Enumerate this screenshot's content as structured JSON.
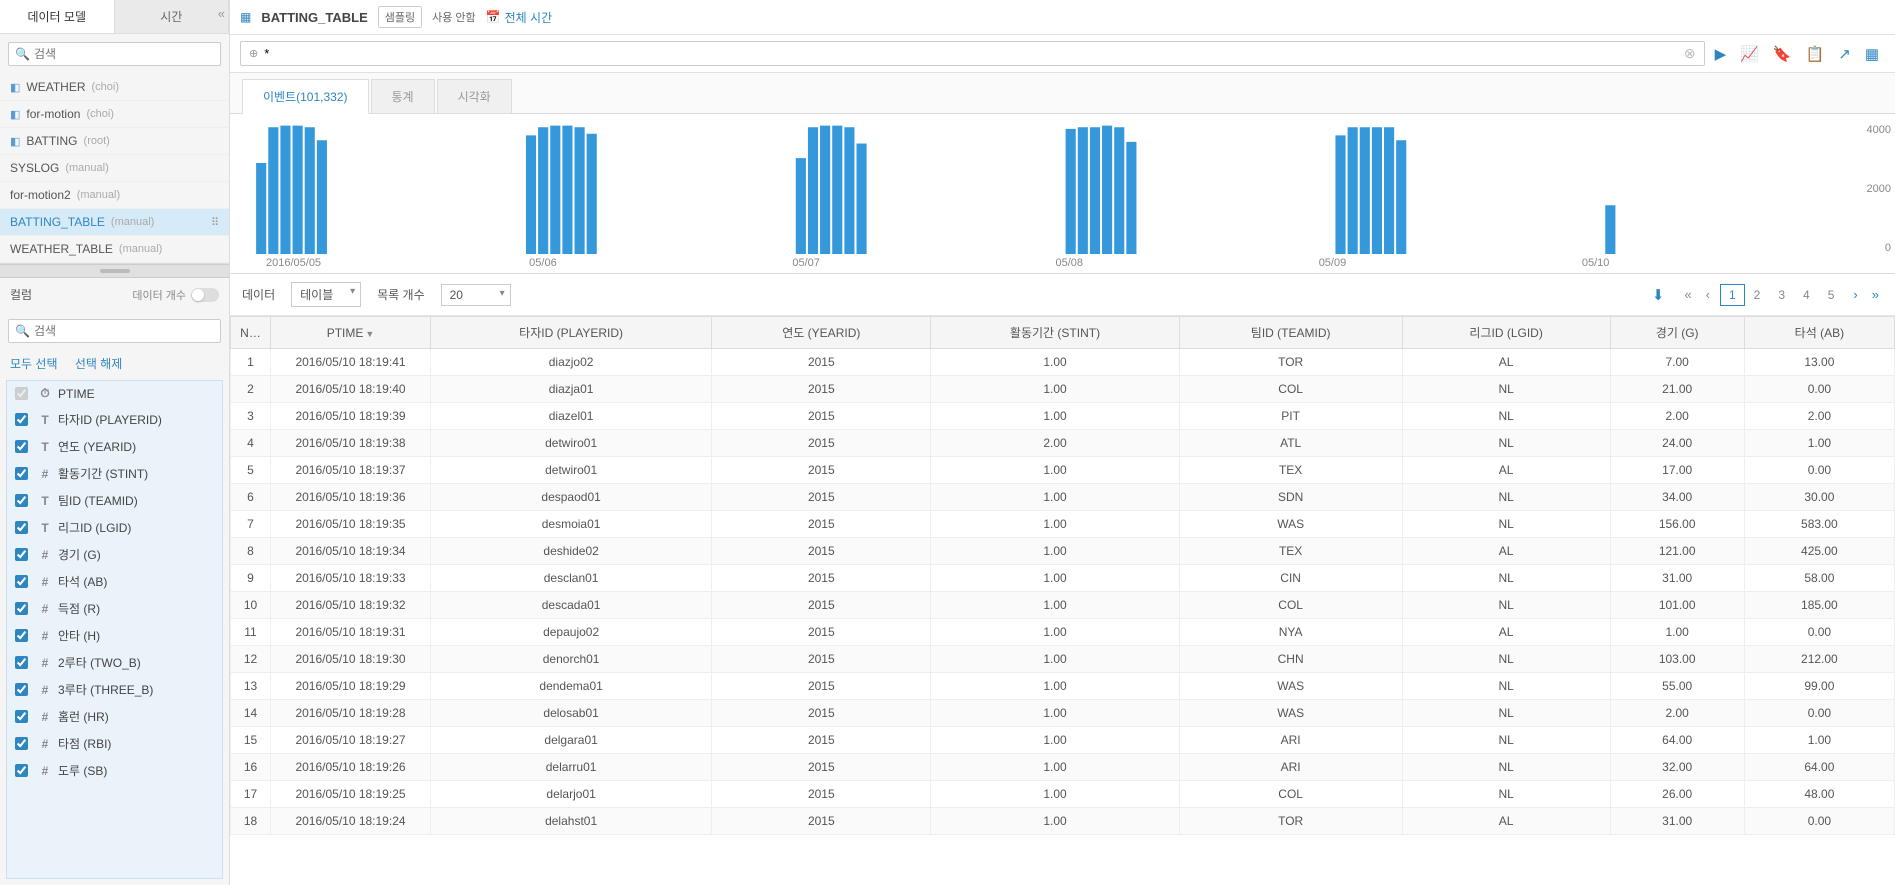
{
  "sidebar": {
    "tabs": {
      "data_model": "데이터 모델",
      "time": "시간"
    },
    "search_placeholder": "검색",
    "tree": [
      {
        "name": "WEATHER",
        "sub": "(choi)",
        "icon": true
      },
      {
        "name": "for-motion",
        "sub": "(choi)",
        "icon": true
      },
      {
        "name": "BATTING",
        "sub": "(root)",
        "icon": true
      },
      {
        "name": "SYSLOG",
        "sub": "(manual)",
        "icon": false
      },
      {
        "name": "for-motion2",
        "sub": "(manual)",
        "icon": false
      },
      {
        "name": "BATTING_TABLE",
        "sub": "(manual)",
        "icon": false,
        "selected": true
      },
      {
        "name": "WEATHER_TABLE",
        "sub": "(manual)",
        "icon": false
      }
    ],
    "columns_header": "컬럼",
    "data_count_label": "데이터 개수",
    "select_all": "모두 선택",
    "deselect_all": "선택 해제",
    "cols": [
      {
        "type": "⏱",
        "label": "PTIME",
        "locked": true
      },
      {
        "type": "T",
        "label": "타자ID (PLAYERID)"
      },
      {
        "type": "T",
        "label": "연도 (YEARID)"
      },
      {
        "type": "#",
        "label": "활동기간 (STINT)"
      },
      {
        "type": "T",
        "label": "팀ID (TEAMID)"
      },
      {
        "type": "T",
        "label": "리그ID (LGID)"
      },
      {
        "type": "#",
        "label": "경기 (G)"
      },
      {
        "type": "#",
        "label": "타석 (AB)"
      },
      {
        "type": "#",
        "label": "득점 (R)"
      },
      {
        "type": "#",
        "label": "안타 (H)"
      },
      {
        "type": "#",
        "label": "2루타 (TWO_B)"
      },
      {
        "type": "#",
        "label": "3루타 (THREE_B)"
      },
      {
        "type": "#",
        "label": "홈런 (HR)"
      },
      {
        "type": "#",
        "label": "타점 (RBI)"
      },
      {
        "type": "#",
        "label": "도루 (SB)"
      }
    ]
  },
  "topbar": {
    "source": "BATTING_TABLE",
    "sampling_label": "샘플링",
    "sampling_status": "사용 안함",
    "time_label": "전체 시간"
  },
  "query": {
    "value": "*"
  },
  "viewtabs": {
    "events": "이벤트(101,332)",
    "stats": "통계",
    "viz": "시각화"
  },
  "chart": {
    "type": "bar",
    "ylim": [
      0,
      4000
    ],
    "yticks": [
      "4000",
      "2000",
      "0"
    ],
    "bar_color": "#3498db",
    "grid_color": "#e8e8e8",
    "background": "#ffffff",
    "groups": [
      {
        "label": "2016/05/05",
        "bars": [
          2800,
          3900,
          3950,
          3950,
          3900,
          3500
        ]
      },
      {
        "label": "05/06",
        "bars": [
          3650,
          3900,
          3950,
          3950,
          3900,
          3700
        ]
      },
      {
        "label": "05/07",
        "bars": [
          2950,
          3900,
          3950,
          3950,
          3900,
          3400
        ]
      },
      {
        "label": "05/08",
        "bars": [
          3850,
          3900,
          3900,
          3950,
          3900,
          3450
        ]
      },
      {
        "label": "05/09",
        "bars": [
          3650,
          3900,
          3900,
          3900,
          3900,
          3500
        ]
      },
      {
        "label": "05/10",
        "bars": [
          1500
        ]
      }
    ]
  },
  "controls": {
    "data_label": "데이터",
    "view_type": "테이블",
    "count_label": "목록 개수",
    "page_size": "20",
    "pages": [
      "1",
      "2",
      "3",
      "4",
      "5"
    ]
  },
  "table": {
    "headers": [
      "N…",
      "PTIME",
      "타자ID (PLAYERID)",
      "연도 (YEARID)",
      "활동기간 (STINT)",
      "팀ID (TEAMID)",
      "리그ID (LGID)",
      "경기 (G)",
      "타석 (AB)"
    ],
    "rows": [
      [
        "1",
        "2016/05/10 18:19:41",
        "diazjo02",
        "2015",
        "1.00",
        "TOR",
        "AL",
        "7.00",
        "13.00"
      ],
      [
        "2",
        "2016/05/10 18:19:40",
        "diazja01",
        "2015",
        "1.00",
        "COL",
        "NL",
        "21.00",
        "0.00"
      ],
      [
        "3",
        "2016/05/10 18:19:39",
        "diazel01",
        "2015",
        "1.00",
        "PIT",
        "NL",
        "2.00",
        "2.00"
      ],
      [
        "4",
        "2016/05/10 18:19:38",
        "detwiro01",
        "2015",
        "2.00",
        "ATL",
        "NL",
        "24.00",
        "1.00"
      ],
      [
        "5",
        "2016/05/10 18:19:37",
        "detwiro01",
        "2015",
        "1.00",
        "TEX",
        "AL",
        "17.00",
        "0.00"
      ],
      [
        "6",
        "2016/05/10 18:19:36",
        "despaod01",
        "2015",
        "1.00",
        "SDN",
        "NL",
        "34.00",
        "30.00"
      ],
      [
        "7",
        "2016/05/10 18:19:35",
        "desmoia01",
        "2015",
        "1.00",
        "WAS",
        "NL",
        "156.00",
        "583.00"
      ],
      [
        "8",
        "2016/05/10 18:19:34",
        "deshide02",
        "2015",
        "1.00",
        "TEX",
        "AL",
        "121.00",
        "425.00"
      ],
      [
        "9",
        "2016/05/10 18:19:33",
        "desclan01",
        "2015",
        "1.00",
        "CIN",
        "NL",
        "31.00",
        "58.00"
      ],
      [
        "10",
        "2016/05/10 18:19:32",
        "descada01",
        "2015",
        "1.00",
        "COL",
        "NL",
        "101.00",
        "185.00"
      ],
      [
        "11",
        "2016/05/10 18:19:31",
        "depaujo02",
        "2015",
        "1.00",
        "NYA",
        "AL",
        "1.00",
        "0.00"
      ],
      [
        "12",
        "2016/05/10 18:19:30",
        "denorch01",
        "2015",
        "1.00",
        "CHN",
        "NL",
        "103.00",
        "212.00"
      ],
      [
        "13",
        "2016/05/10 18:19:29",
        "dendema01",
        "2015",
        "1.00",
        "WAS",
        "NL",
        "55.00",
        "99.00"
      ],
      [
        "14",
        "2016/05/10 18:19:28",
        "delosab01",
        "2015",
        "1.00",
        "WAS",
        "NL",
        "2.00",
        "0.00"
      ],
      [
        "15",
        "2016/05/10 18:19:27",
        "delgara01",
        "2015",
        "1.00",
        "ARI",
        "NL",
        "64.00",
        "1.00"
      ],
      [
        "16",
        "2016/05/10 18:19:26",
        "delarru01",
        "2015",
        "1.00",
        "ARI",
        "NL",
        "32.00",
        "64.00"
      ],
      [
        "17",
        "2016/05/10 18:19:25",
        "delarjo01",
        "2015",
        "1.00",
        "COL",
        "NL",
        "26.00",
        "48.00"
      ],
      [
        "18",
        "2016/05/10 18:19:24",
        "delahst01",
        "2015",
        "1.00",
        "TOR",
        "AL",
        "31.00",
        "0.00"
      ]
    ]
  }
}
